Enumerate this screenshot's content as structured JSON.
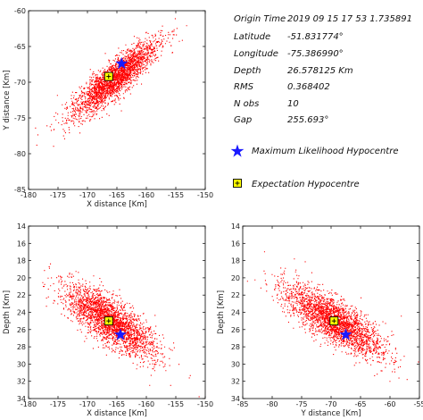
{
  "colors": {
    "scatter": "#ff0000",
    "ml_marker": "#1a1aff",
    "exp_marker_fill": "#ffff00",
    "axis": "#000000"
  },
  "info": [
    {
      "label": "Origin Time",
      "value": "2019 09 15  17 53 1.735891"
    },
    {
      "label": "Latitude",
      "value": "-51.831774°"
    },
    {
      "label": "Longitude",
      "value": "-75.386990°"
    },
    {
      "label": "Depth",
      "value": "26.578125 Km"
    },
    {
      "label": "RMS",
      "value": "0.368402"
    },
    {
      "label": "N obs",
      "value": "10"
    },
    {
      "label": "Gap",
      "value": "255.693°"
    }
  ],
  "legend": [
    {
      "label": "Maximum Likelihood Hypocentre",
      "marker": "blue-star"
    },
    {
      "label": "Expectation Hypocentre",
      "marker": "yellow-square-plus"
    }
  ],
  "chart_data": [
    {
      "type": "scatter",
      "id": "xy",
      "xlabel": "X distance [Km]",
      "ylabel": "Y distance [Km]",
      "xlim": [
        -180,
        -150
      ],
      "ylim": [
        -85,
        -60
      ],
      "y_inverted": false,
      "xticks": [
        -180,
        -175,
        -170,
        -165,
        -160,
        -155,
        -150
      ],
      "yticks": [
        -85,
        -80,
        -75,
        -70,
        -65,
        -60
      ],
      "cloud": {
        "type": "density",
        "mean": [
          -165.5,
          -69.5
        ],
        "sd_major": 4.6,
        "sd_minor": 1.2,
        "angle_deg": 41,
        "n": 2600
      },
      "ml_hypocentre": [
        -164.2,
        -67.4
      ],
      "expectation_hypocentre": [
        -166.4,
        -69.2
      ]
    },
    {
      "type": "scatter",
      "id": "xz",
      "xlabel": "X distance [Km]",
      "ylabel": "Depth [Km]",
      "xlim": [
        -180,
        -150
      ],
      "ylim": [
        14,
        34
      ],
      "y_inverted": true,
      "xticks": [
        -180,
        -175,
        -170,
        -165,
        -160,
        -155,
        -150
      ],
      "yticks": [
        14,
        16,
        18,
        20,
        22,
        24,
        26,
        28,
        30,
        32,
        34
      ],
      "cloud": {
        "type": "density",
        "mean": [
          -166.2,
          25.0
        ],
        "sd_major": 4.6,
        "sd_minor": 1.6,
        "angle_deg": -36,
        "n": 2600
      },
      "ml_hypocentre": [
        -164.4,
        26.6
      ],
      "expectation_hypocentre": [
        -166.4,
        25.0
      ]
    },
    {
      "type": "scatter",
      "id": "yz",
      "xlabel": "Y distance [Km]",
      "ylabel": "Depth [Km]",
      "xlim": [
        -85,
        -55
      ],
      "ylim": [
        14,
        34
      ],
      "y_inverted": true,
      "xticks": [
        -85,
        -80,
        -75,
        -70,
        -65,
        -60,
        -55
      ],
      "yticks": [
        14,
        16,
        18,
        20,
        22,
        24,
        26,
        28,
        30,
        32,
        34
      ],
      "cloud": {
        "type": "density",
        "mean": [
          -69.6,
          24.9
        ],
        "sd_major": 4.8,
        "sd_minor": 1.6,
        "angle_deg": -33,
        "n": 2600
      },
      "ml_hypocentre": [
        -67.5,
        26.6
      ],
      "expectation_hypocentre": [
        -69.5,
        25.0
      ]
    }
  ]
}
